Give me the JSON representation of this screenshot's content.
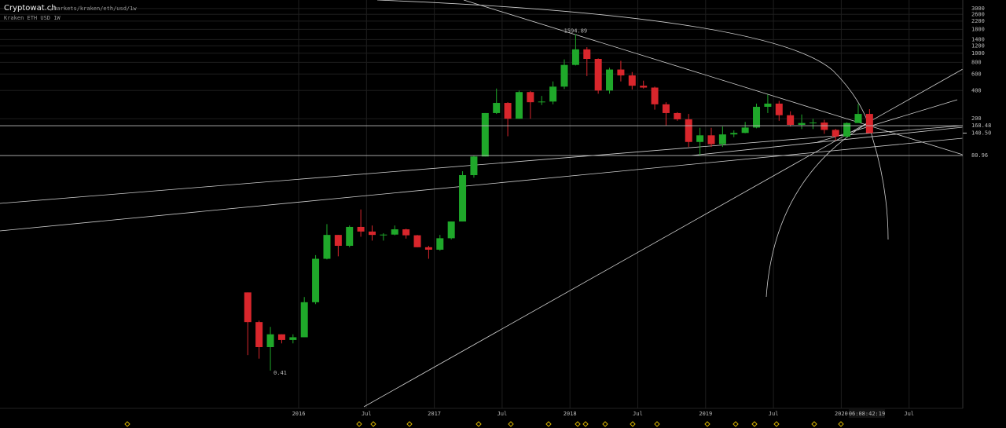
{
  "chart_data": {
    "type": "candlestick",
    "title": "Cryptowat.ch",
    "subtitle": "/markets/kraken/eth/usd/1w",
    "label": "Kraken ETH USD 1W",
    "log_scale": true,
    "grid": true,
    "up_color": "#1fa82a",
    "down_color": "#d9262c",
    "x": [
      "2015-08",
      "2015-09",
      "2015-10",
      "2015-11",
      "2015-12",
      "2016-01",
      "2016-02",
      "2016-03",
      "2016-04",
      "2016-05",
      "2016-06",
      "2016-07",
      "2016-08",
      "2016-09",
      "2016-10",
      "2016-11",
      "2016-12",
      "2017-01",
      "2017-02",
      "2017-03",
      "2017-04",
      "2017-05",
      "2017-06",
      "2017-07",
      "2017-08",
      "2017-09",
      "2017-10",
      "2017-11",
      "2017-12",
      "2018-01",
      "2018-02",
      "2018-03",
      "2018-04",
      "2018-05",
      "2018-06",
      "2018-07",
      "2018-08",
      "2018-09",
      "2018-10",
      "2018-11",
      "2018-12",
      "2019-01",
      "2019-02",
      "2019-03",
      "2019-04",
      "2019-05",
      "2019-06",
      "2019-07",
      "2019-08",
      "2019-09",
      "2019-10",
      "2019-11",
      "2019-12",
      "2020-01",
      "2020-02",
      "2020-03"
    ],
    "open": [
      2.8,
      1.35,
      0.73,
      1.0,
      0.87,
      0.93,
      2.2,
      6.4,
      11.5,
      8.8,
      14.0,
      12.5,
      11.5,
      11.6,
      13.2,
      11.4,
      8.5,
      8.0,
      10.6,
      16.0,
      50.0,
      79.0,
      230,
      295,
      200,
      385,
      300,
      305,
      440,
      750,
      1100,
      870,
      400,
      670,
      580,
      450,
      430,
      285,
      230,
      197,
      113,
      133,
      107,
      136,
      141,
      161,
      268,
      290,
      218,
      172,
      180,
      182,
      152,
      129,
      180,
      225
    ],
    "high": [
      2.8,
      1.4,
      1.2,
      1.0,
      1.0,
      2.5,
      7.0,
      15.0,
      11.5,
      14.5,
      21.5,
      14.5,
      12.0,
      14.5,
      13.4,
      11.5,
      8.8,
      11.5,
      16.0,
      55.0,
      80.0,
      230,
      420,
      300,
      400,
      395,
      350,
      500,
      860,
      1594.89,
      1160,
      880,
      700,
      830,
      630,
      510,
      440,
      300,
      235,
      225,
      160,
      160,
      165,
      150,
      185,
      290,
      362,
      310,
      240,
      222,
      200,
      195,
      156,
      183,
      288,
      253
    ],
    "low": [
      0.6,
      0.55,
      0.41,
      0.8,
      0.8,
      0.93,
      2.1,
      6.3,
      6.8,
      8.5,
      11.0,
      10.0,
      10.0,
      11.4,
      10.5,
      8.5,
      6.4,
      7.8,
      10.3,
      16.0,
      47.0,
      79,
      225,
      130,
      200,
      200,
      280,
      285,
      415,
      740,
      570,
      370,
      370,
      500,
      410,
      420,
      250,
      170,
      190,
      100,
      81,
      100,
      100,
      127,
      140,
      158,
      230,
      190,
      165,
      155,
      155,
      138,
      117,
      126,
      180,
      140
    ],
    "close": [
      1.35,
      0.73,
      1.0,
      0.87,
      0.93,
      2.2,
      6.4,
      11.5,
      8.8,
      14.0,
      12.5,
      11.5,
      11.6,
      13.2,
      11.4,
      8.5,
      8.0,
      10.6,
      16.0,
      50.0,
      79.0,
      230,
      295,
      200,
      385,
      300,
      305,
      440,
      750,
      1100,
      870,
      400,
      670,
      580,
      450,
      430,
      285,
      230,
      197,
      113,
      133,
      107,
      136,
      141,
      161,
      268,
      290,
      218,
      172,
      180,
      182,
      152,
      129,
      180,
      225,
      140.5
    ],
    "ylim": [
      0.162,
      3700
    ],
    "yticks": [
      3000,
      2600,
      2200,
      1800,
      1400,
      1200,
      1000,
      800,
      600,
      400,
      200
    ],
    "levels": [
      168.48,
      80.96
    ],
    "last_price": {
      "value": 140.5,
      "label": "140.50"
    },
    "xticks": [
      {
        "value": "2016-01",
        "label": "2016"
      },
      {
        "value": "2016-07",
        "label": "Jul"
      },
      {
        "value": "2017-01",
        "label": "2017"
      },
      {
        "value": "2017-07",
        "label": "Jul"
      },
      {
        "value": "2018-01",
        "label": "2018"
      },
      {
        "value": "2018-07",
        "label": "Jul"
      },
      {
        "value": "2019-01",
        "label": "2019"
      },
      {
        "value": "2019-07",
        "label": "Jul"
      },
      {
        "value": "2020-01",
        "label": "2020"
      },
      {
        "value": "2020-07",
        "label": "Jul"
      }
    ],
    "countdown": "06:08:42:19"
  }
}
